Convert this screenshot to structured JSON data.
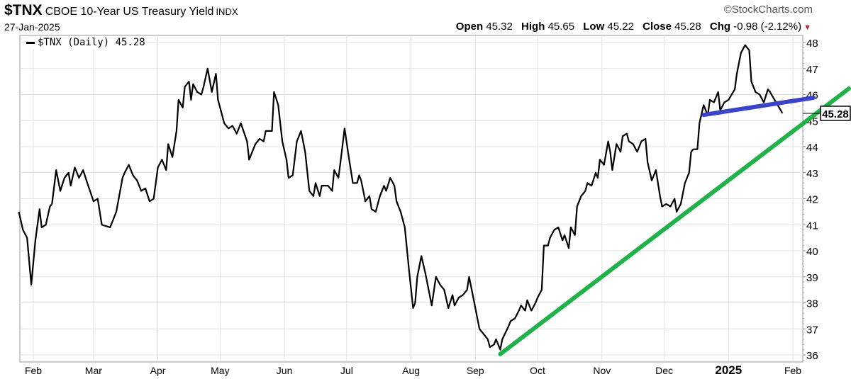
{
  "header": {
    "symbol": "$TNX",
    "name": "CBOE 10-Year US Treasury Yield",
    "exchange": "INDX",
    "date": "27-Jan-2025",
    "copyright": "©StockCharts.com",
    "open_label": "Open",
    "open": "45.32",
    "high_label": "High",
    "high": "45.65",
    "low_label": "Low",
    "low": "45.22",
    "close_label": "Close",
    "close": "45.28",
    "chg_label": "Chg",
    "chg": "-0.98 (-2.12%)",
    "down_color": "#b0203a"
  },
  "legend": {
    "label": "$TNX (Daily) 45.28"
  },
  "chart_data": {
    "type": "line",
    "series": [
      {
        "name": "$TNX (Daily)",
        "color": "#000000",
        "points": [
          [
            "2024-01-25",
            41.5
          ],
          [
            "2024-01-27",
            40.8
          ],
          [
            "2024-01-29",
            40.5
          ],
          [
            "2024-01-31",
            38.7
          ],
          [
            "2024-02-02",
            40.4
          ],
          [
            "2024-02-04",
            41.6
          ],
          [
            "2024-02-05",
            40.9
          ],
          [
            "2024-02-07",
            41.0
          ],
          [
            "2024-02-09",
            41.7
          ],
          [
            "2024-02-10",
            41.8
          ],
          [
            "2024-02-12",
            43.1
          ],
          [
            "2024-02-14",
            42.3
          ],
          [
            "2024-02-16",
            42.8
          ],
          [
            "2024-02-18",
            43.0
          ],
          [
            "2024-02-19",
            42.5
          ],
          [
            "2024-02-21",
            43.2
          ],
          [
            "2024-02-23",
            42.8
          ],
          [
            "2024-02-25",
            43.1
          ],
          [
            "2024-02-27",
            42.6
          ],
          [
            "2024-03-01",
            41.9
          ],
          [
            "2024-03-03",
            42.0
          ],
          [
            "2024-03-05",
            41.0
          ],
          [
            "2024-03-09",
            40.9
          ],
          [
            "2024-03-12",
            41.5
          ],
          [
            "2024-03-15",
            42.8
          ],
          [
            "2024-03-16",
            43.0
          ],
          [
            "2024-03-18",
            43.3
          ],
          [
            "2024-03-20",
            42.9
          ],
          [
            "2024-03-22",
            42.7
          ],
          [
            "2024-03-24",
            42.3
          ],
          [
            "2024-03-26",
            42.4
          ],
          [
            "2024-03-28",
            41.9
          ],
          [
            "2024-03-30",
            42.0
          ],
          [
            "2024-04-01",
            43.2
          ],
          [
            "2024-04-03",
            43.5
          ],
          [
            "2024-04-05",
            43.1
          ],
          [
            "2024-04-06",
            44.1
          ],
          [
            "2024-04-08",
            43.6
          ],
          [
            "2024-04-10",
            44.6
          ],
          [
            "2024-04-11",
            45.8
          ],
          [
            "2024-04-13",
            45.5
          ],
          [
            "2024-04-14",
            46.3
          ],
          [
            "2024-04-16",
            46.5
          ],
          [
            "2024-04-17",
            45.8
          ],
          [
            "2024-04-18",
            46.4
          ],
          [
            "2024-04-20",
            46.1
          ],
          [
            "2024-04-22",
            46.0
          ],
          [
            "2024-04-23",
            46.3
          ],
          [
            "2024-04-25",
            47.0
          ],
          [
            "2024-04-27",
            46.1
          ],
          [
            "2024-04-29",
            46.8
          ],
          [
            "2024-04-30",
            45.8
          ],
          [
            "2024-05-03",
            44.9
          ],
          [
            "2024-05-05",
            44.7
          ],
          [
            "2024-05-07",
            44.8
          ],
          [
            "2024-05-09",
            44.5
          ],
          [
            "2024-05-11",
            44.9
          ],
          [
            "2024-05-14",
            44.2
          ],
          [
            "2024-05-15",
            43.5
          ],
          [
            "2024-05-18",
            44.1
          ],
          [
            "2024-05-20",
            44.3
          ],
          [
            "2024-05-22",
            44.2
          ],
          [
            "2024-05-23",
            44.6
          ],
          [
            "2024-05-26",
            44.6
          ],
          [
            "2024-05-27",
            46.1
          ],
          [
            "2024-05-29",
            45.6
          ],
          [
            "2024-05-31",
            44.2
          ],
          [
            "2024-06-02",
            43.5
          ],
          [
            "2024-06-03",
            42.8
          ],
          [
            "2024-06-05",
            42.9
          ],
          [
            "2024-06-07",
            44.2
          ],
          [
            "2024-06-09",
            44.6
          ],
          [
            "2024-06-11",
            43.8
          ],
          [
            "2024-06-13",
            42.3
          ],
          [
            "2024-06-15",
            42.1
          ],
          [
            "2024-06-16",
            42.6
          ],
          [
            "2024-06-18",
            42.1
          ],
          [
            "2024-06-19",
            42.5
          ],
          [
            "2024-06-22",
            42.5
          ],
          [
            "2024-06-24",
            42.3
          ],
          [
            "2024-06-25",
            43.1
          ],
          [
            "2024-06-27",
            42.8
          ],
          [
            "2024-06-28",
            43.4
          ],
          [
            "2024-06-30",
            44.7
          ],
          [
            "2024-07-02",
            43.6
          ],
          [
            "2024-07-04",
            42.6
          ],
          [
            "2024-07-06",
            42.6
          ],
          [
            "2024-07-07",
            42.9
          ],
          [
            "2024-07-08",
            42.7
          ],
          [
            "2024-07-10",
            41.9
          ],
          [
            "2024-07-12",
            42.1
          ],
          [
            "2024-07-13",
            41.6
          ],
          [
            "2024-07-15",
            41.5
          ],
          [
            "2024-07-17",
            42.1
          ],
          [
            "2024-07-19",
            42.5
          ],
          [
            "2024-07-20",
            42.3
          ],
          [
            "2024-07-22",
            42.8
          ],
          [
            "2024-07-24",
            42.5
          ],
          [
            "2024-07-25",
            41.9
          ],
          [
            "2024-07-27",
            41.5
          ],
          [
            "2024-07-29",
            40.9
          ],
          [
            "2024-07-31",
            39.3
          ],
          [
            "2024-08-02",
            37.8
          ],
          [
            "2024-08-03",
            38.0
          ],
          [
            "2024-08-04",
            39.0
          ],
          [
            "2024-08-06",
            39.8
          ],
          [
            "2024-08-08",
            39.1
          ],
          [
            "2024-08-10",
            38.3
          ],
          [
            "2024-08-11",
            37.9
          ],
          [
            "2024-08-13",
            39.0
          ],
          [
            "2024-08-15",
            38.7
          ],
          [
            "2024-08-17",
            38.5
          ],
          [
            "2024-08-19",
            37.8
          ],
          [
            "2024-08-21",
            38.3
          ],
          [
            "2024-08-22",
            37.9
          ],
          [
            "2024-08-24",
            38.2
          ],
          [
            "2024-08-26",
            38.3
          ],
          [
            "2024-08-28",
            38.5
          ],
          [
            "2024-08-29",
            39.0
          ],
          [
            "2024-08-31",
            38.2
          ],
          [
            "2024-09-02",
            37.4
          ],
          [
            "2024-09-03",
            37.0
          ],
          [
            "2024-09-05",
            36.8
          ],
          [
            "2024-09-07",
            36.6
          ],
          [
            "2024-09-08",
            36.3
          ],
          [
            "2024-09-10",
            36.4
          ],
          [
            "2024-09-11",
            36.6
          ],
          [
            "2024-09-13",
            36.2
          ],
          [
            "2024-09-14",
            36.6
          ],
          [
            "2024-09-17",
            37.1
          ],
          [
            "2024-09-18",
            37.3
          ],
          [
            "2024-09-20",
            37.4
          ],
          [
            "2024-09-22",
            37.7
          ],
          [
            "2024-09-23",
            37.9
          ],
          [
            "2024-09-25",
            37.7
          ],
          [
            "2024-09-26",
            38.1
          ],
          [
            "2024-09-28",
            37.7
          ],
          [
            "2024-09-30",
            38.0
          ],
          [
            "2024-10-01",
            38.2
          ],
          [
            "2024-10-03",
            38.5
          ],
          [
            "2024-10-04",
            40.2
          ],
          [
            "2024-10-06",
            40.2
          ],
          [
            "2024-10-07",
            40.5
          ],
          [
            "2024-10-09",
            40.8
          ],
          [
            "2024-10-11",
            40.9
          ],
          [
            "2024-10-13",
            40.4
          ],
          [
            "2024-10-14",
            40.6
          ],
          [
            "2024-10-16",
            40.1
          ],
          [
            "2024-10-17",
            40.9
          ],
          [
            "2024-10-19",
            40.6
          ],
          [
            "2024-10-20",
            41.7
          ],
          [
            "2024-10-22",
            42.1
          ],
          [
            "2024-10-24",
            42.3
          ],
          [
            "2024-10-25",
            42.6
          ],
          [
            "2024-10-27",
            42.5
          ],
          [
            "2024-10-29",
            43.0
          ],
          [
            "2024-10-30",
            42.8
          ],
          [
            "2024-10-31",
            43.5
          ],
          [
            "2024-11-02",
            43.3
          ],
          [
            "2024-11-04",
            44.2
          ],
          [
            "2024-11-05",
            43.8
          ],
          [
            "2024-11-06",
            43.1
          ],
          [
            "2024-11-08",
            44.1
          ],
          [
            "2024-11-10",
            43.8
          ],
          [
            "2024-11-11",
            44.4
          ],
          [
            "2024-11-13",
            44.5
          ],
          [
            "2024-11-14",
            44.2
          ],
          [
            "2024-11-16",
            44.1
          ],
          [
            "2024-11-18",
            43.8
          ],
          [
            "2024-11-20",
            44.2
          ],
          [
            "2024-11-22",
            44.3
          ],
          [
            "2024-11-23",
            43.4
          ],
          [
            "2024-11-25",
            42.7
          ],
          [
            "2024-11-27",
            43.1
          ],
          [
            "2024-11-29",
            42.1
          ],
          [
            "2024-11-30",
            41.7
          ],
          [
            "2024-12-02",
            41.8
          ],
          [
            "2024-12-04",
            41.7
          ],
          [
            "2024-12-06",
            42.0
          ],
          [
            "2024-12-07",
            41.5
          ],
          [
            "2024-12-09",
            41.8
          ],
          [
            "2024-12-11",
            42.6
          ],
          [
            "2024-12-13",
            43.0
          ],
          [
            "2024-12-14",
            43.8
          ],
          [
            "2024-12-15",
            43.9
          ],
          [
            "2024-12-17",
            43.9
          ],
          [
            "2024-12-18",
            44.9
          ],
          [
            "2024-12-20",
            45.6
          ],
          [
            "2024-12-22",
            45.2
          ],
          [
            "2024-12-23",
            45.8
          ],
          [
            "2024-12-25",
            45.7
          ],
          [
            "2024-12-27",
            46.1
          ],
          [
            "2024-12-28",
            45.4
          ],
          [
            "2024-12-30",
            45.7
          ],
          [
            "2025-01-01",
            45.8
          ],
          [
            "2025-01-04",
            46.2
          ],
          [
            "2025-01-05",
            46.8
          ],
          [
            "2025-01-07",
            47.6
          ],
          [
            "2025-01-09",
            47.9
          ],
          [
            "2025-01-11",
            47.7
          ],
          [
            "2025-01-12",
            46.5
          ],
          [
            "2025-01-14",
            46.1
          ],
          [
            "2025-01-16",
            46.0
          ],
          [
            "2025-01-18",
            45.7
          ],
          [
            "2025-01-20",
            46.2
          ],
          [
            "2025-01-21",
            46.1
          ],
          [
            "2025-01-27",
            45.28
          ]
        ]
      }
    ],
    "trendlines": [
      {
        "color": "#22b04a",
        "from": [
          "2024-09-13",
          36.03
        ],
        "to": [
          "2025-02-28",
          46.23
        ]
      },
      {
        "color": "#3b44c8",
        "from": [
          "2024-12-20",
          45.22
        ],
        "to": [
          "2025-02-11",
          45.88
        ]
      }
    ],
    "last_value_label": "45.28",
    "ylim": [
      36,
      48
    ],
    "y_ticks": [
      "36",
      "37",
      "38",
      "39",
      "40",
      "41",
      "42",
      "43",
      "44",
      "45",
      "46",
      "47",
      "48"
    ],
    "y_axis_side": "right",
    "x_ticks": [
      {
        "label": "Feb",
        "date": "2024-02-01"
      },
      {
        "label": "Mar",
        "date": "2024-03-01"
      },
      {
        "label": "Apr",
        "date": "2024-04-01"
      },
      {
        "label": "May",
        "date": "2024-05-01"
      },
      {
        "label": "Jun",
        "date": "2024-06-01"
      },
      {
        "label": "Jul",
        "date": "2024-07-01"
      },
      {
        "label": "Aug",
        "date": "2024-08-01"
      },
      {
        "label": "Sep",
        "date": "2024-09-01"
      },
      {
        "label": "Oct",
        "date": "2024-10-01"
      },
      {
        "label": "Nov",
        "date": "2024-11-01"
      },
      {
        "label": "Dec",
        "date": "2024-12-01"
      },
      {
        "label": "2025",
        "date": "2025-01-01",
        "bold": true
      },
      {
        "label": "Feb",
        "date": "2025-02-01"
      }
    ],
    "grid": true,
    "legend_position": "top-left"
  }
}
